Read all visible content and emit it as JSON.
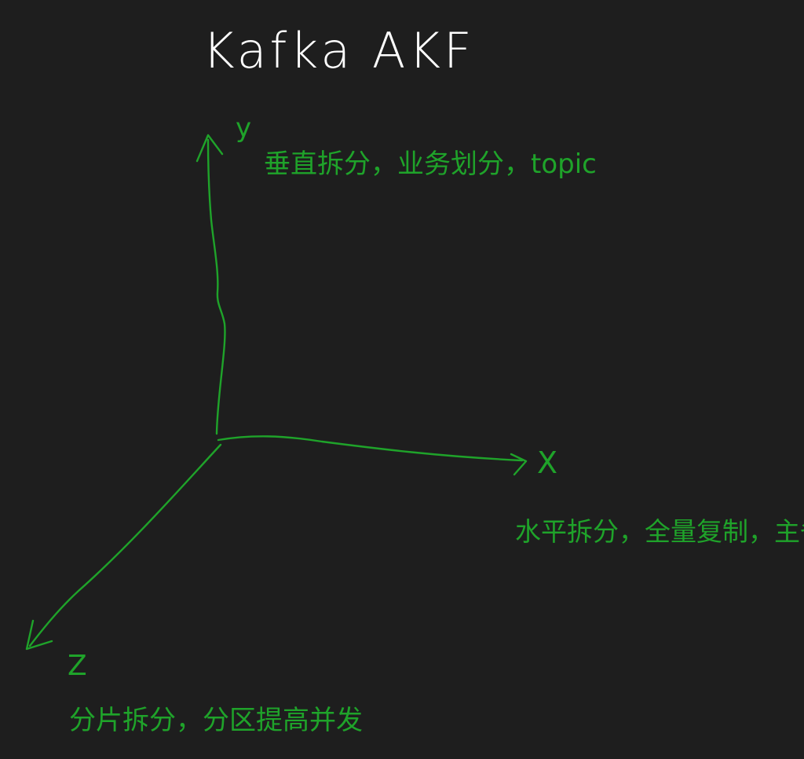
{
  "title": "Kafka AKF",
  "axes": {
    "y": {
      "label": "y",
      "description": "垂直拆分，业务划分，topic"
    },
    "x": {
      "label": "X",
      "description": "水平拆分，全量复制，主备"
    },
    "z": {
      "label": "Z",
      "description": "分片拆分，分区提高并发"
    }
  },
  "colors": {
    "background": "#1e1e1e",
    "ink_white": "#ffffff",
    "ink_green": "#1fa32a"
  }
}
